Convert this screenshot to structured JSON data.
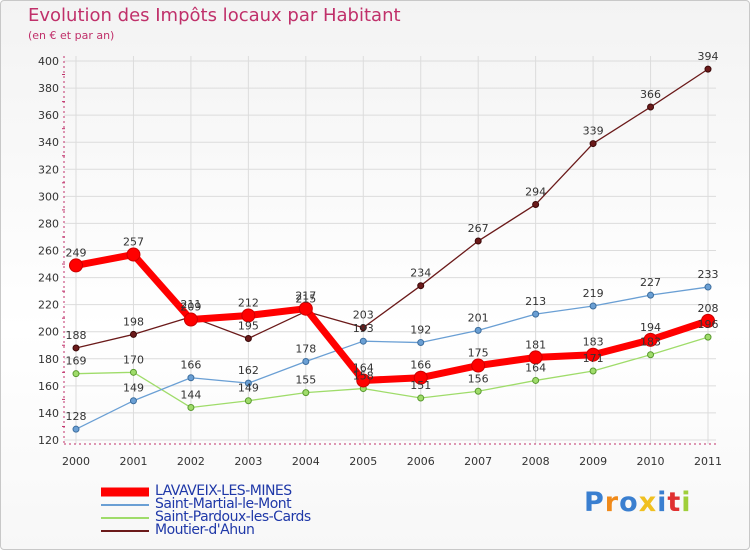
{
  "chart_data": {
    "type": "line",
    "title": "Evolution des Impôts locaux par Habitant",
    "subtitle": "(en € et par an)",
    "x": [
      "2000",
      "2001",
      "2002",
      "2003",
      "2004",
      "2005",
      "2006",
      "2007",
      "2008",
      "2009",
      "2010",
      "2011"
    ],
    "ylim": [
      120,
      400
    ],
    "yticks": [
      120,
      140,
      160,
      180,
      200,
      220,
      240,
      260,
      280,
      300,
      320,
      340,
      360,
      380,
      400
    ],
    "grid": true,
    "legend_position": "bottom-left",
    "series": [
      {
        "name": "LAVAVEIX-LES-MINES",
        "color": "#ff0000",
        "values": [
          249,
          257,
          209,
          212,
          217,
          164,
          166,
          175,
          181,
          183,
          194,
          208
        ]
      },
      {
        "name": "Saint-Martial-le-Mont",
        "color": "#6a9fd4",
        "values": [
          128,
          149,
          166,
          162,
          178,
          193,
          192,
          201,
          213,
          219,
          227,
          233
        ]
      },
      {
        "name": "Saint-Pardoux-les-Cards",
        "color": "#9fdc6a",
        "values": [
          169,
          170,
          144,
          149,
          155,
          158,
          151,
          156,
          164,
          171,
          183,
          196
        ]
      },
      {
        "name": "Moutier-d'Ahun",
        "color": "#6b1a1a",
        "values": [
          188,
          198,
          211,
          195,
          215,
          203,
          234,
          267,
          294,
          339,
          366,
          394
        ]
      }
    ]
  },
  "logo": {
    "text": "Proxiti",
    "letter_colors": [
      "#3a7fd0",
      "#f08a1a",
      "#3a7fd0",
      "#f0c020",
      "#3a7fd0",
      "#e03030",
      "#9fcf3a"
    ]
  }
}
